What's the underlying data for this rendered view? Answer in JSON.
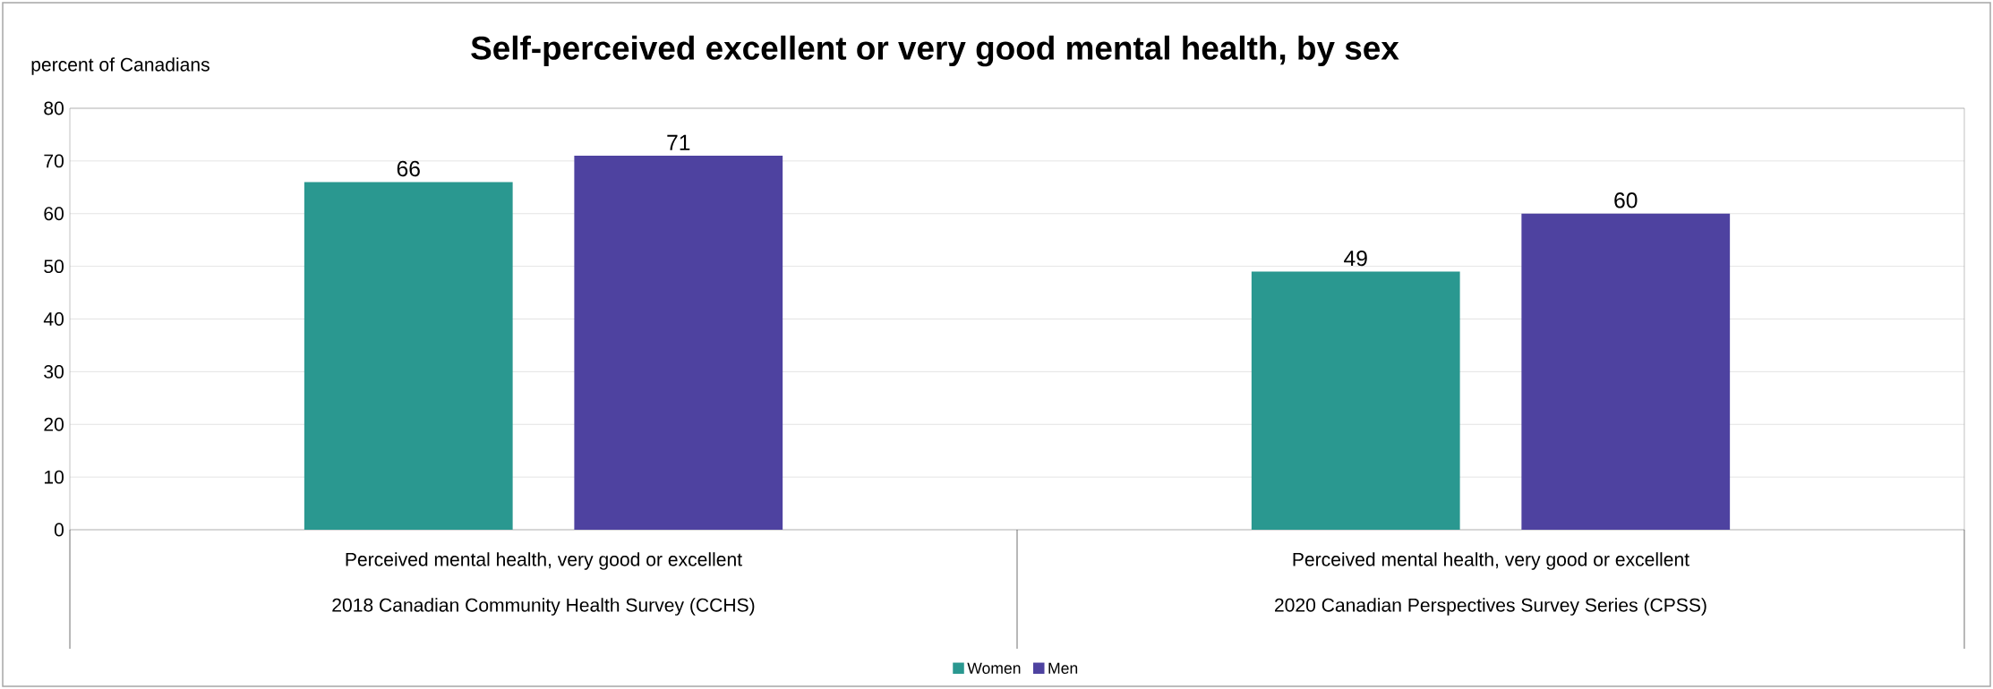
{
  "chart_data": {
    "type": "bar",
    "title": "Self-perceived excellent or very good mental health, by sex",
    "ylabel": "percent of Canadians",
    "categories": [
      "2018 Canadian Community Health Survey (CCHS)",
      "2020 Canadian Perspectives Survey Series (CPSS)"
    ],
    "annotations": [
      "Perceived mental health, very good or excellent",
      "Perceived mental health, very good or excellent"
    ],
    "series": [
      {
        "name": "Women",
        "color": "#2a9890",
        "values": [
          66,
          49
        ]
      },
      {
        "name": "Men",
        "color": "#4e42a0",
        "values": [
          71,
          60
        ]
      }
    ],
    "ylim": [
      0,
      80
    ],
    "yticks": [
      0,
      10,
      20,
      30,
      40,
      50,
      60,
      70,
      80
    ],
    "grid": "y",
    "legend": "bottom",
    "data_labels": true
  }
}
